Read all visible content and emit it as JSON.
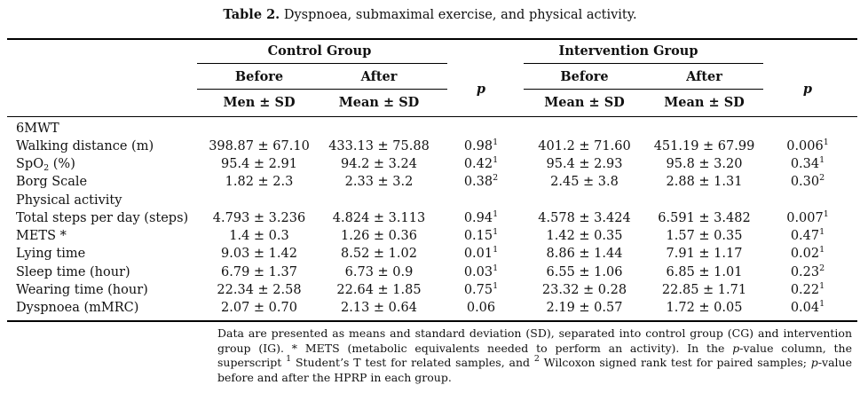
{
  "caption": {
    "label": "Table 2.",
    "text": " Dyspnoea, submaximal exercise, and physical activity."
  },
  "header": {
    "control_group": "Control Group",
    "intervention_group": "Intervention Group",
    "before": "Before",
    "after": "After",
    "p": "p",
    "cg_before_stat": "Men ± SD",
    "cg_after_stat": "Mean ± SD",
    "ig_before_stat": "Mean ± SD",
    "ig_after_stat": "Mean ± SD"
  },
  "rows": [
    {
      "label": "6MWT",
      "section": true
    },
    {
      "label": "Walking distance (m)",
      "cg_before": "398.87 ± 67.10",
      "cg_after": "433.13 ± 75.88",
      "cg_p": "0.98",
      "cg_p_sup": "1",
      "ig_before": "401.2 ± 71.60",
      "ig_after": "451.19 ± 67.99",
      "ig_p": "0.006",
      "ig_p_sup": "1"
    },
    {
      "label_pre": "SpO",
      "label_sub": "2",
      "label_post": " (%)",
      "cg_before": "95.4 ± 2.91",
      "cg_after": "94.2 ± 3.24",
      "cg_p": "0.42",
      "cg_p_sup": "1",
      "ig_before": "95.4 ± 2.93",
      "ig_after": "95.8 ± 3.20",
      "ig_p": "0.34",
      "ig_p_sup": "1"
    },
    {
      "label": "Borg Scale",
      "cg_before": "1.82 ± 2.3",
      "cg_after": "2.33 ± 3.2",
      "cg_p": "0.38",
      "cg_p_sup": "2",
      "ig_before": "2.45 ± 3.8",
      "ig_after": "2.88 ± 1.31",
      "ig_p": "0.30",
      "ig_p_sup": "2"
    },
    {
      "label": "Physical activity",
      "section": true
    },
    {
      "label": "Total steps per day (steps)",
      "cg_before": "4.793 ± 3.236",
      "cg_after": "4.824 ± 3.113",
      "cg_p": "0.94",
      "cg_p_sup": "1",
      "ig_before": "4.578 ± 3.424",
      "ig_after": "6.591 ± 3.482",
      "ig_p": "0.007",
      "ig_p_sup": "1"
    },
    {
      "label": "METS *",
      "cg_before": "1.4 ± 0.3",
      "cg_after": "1.26 ± 0.36",
      "cg_p": "0.15",
      "cg_p_sup": "1",
      "ig_before": "1.42 ± 0.35",
      "ig_after": "1.57 ± 0.35",
      "ig_p": "0.47",
      "ig_p_sup": "1"
    },
    {
      "label": "Lying time",
      "cg_before": "9.03 ± 1.42",
      "cg_after": "8.52 ± 1.02",
      "cg_p": "0.01",
      "cg_p_sup": "1",
      "ig_before": "8.86 ± 1.44",
      "ig_after": "7.91 ± 1.17",
      "ig_p": "0.02",
      "ig_p_sup": "1"
    },
    {
      "label": "Sleep time (hour)",
      "cg_before": "6.79 ± 1.37",
      "cg_after": "6.73 ± 0.9",
      "cg_p": "0.03",
      "cg_p_sup": "1",
      "ig_before": "6.55 ± 1.06",
      "ig_after": "6.85 ± 1.01",
      "ig_p": "0.23",
      "ig_p_sup": "2"
    },
    {
      "label": "Wearing time (hour)",
      "cg_before": "22.34 ± 2.58",
      "cg_after": "22.64 ± 1.85",
      "cg_p": "0.75",
      "cg_p_sup": "1",
      "ig_before": "23.32 ± 0.28",
      "ig_after": "22.85 ± 1.71",
      "ig_p": "0.22",
      "ig_p_sup": "1"
    },
    {
      "label": "Dyspnoea (mMRC)",
      "cg_before": "2.07 ± 0.70",
      "cg_after": "2.13 ± 0.64",
      "cg_p": "0.06",
      "cg_p_sup": "",
      "ig_before": "2.19 ± 0.57",
      "ig_after": "1.72 ± 0.05",
      "ig_p": "0.04",
      "ig_p_sup": "1"
    }
  ],
  "footnote": {
    "part1": "Data are presented as means and standard deviation (SD), separated into control group (CG) and intervention group (IG). * METS (metabolic equivalents needed to perform an activity). In the ",
    "p1": "p",
    "part2": "-value column, the superscript ",
    "sup1": "1",
    "part3": " Student’s T test for related samples, and ",
    "sup2": "2",
    "part4": " Wilcoxon signed rank test for paired samples; ",
    "p2": "p",
    "part5": "-value before and after the HPRP in each group."
  }
}
